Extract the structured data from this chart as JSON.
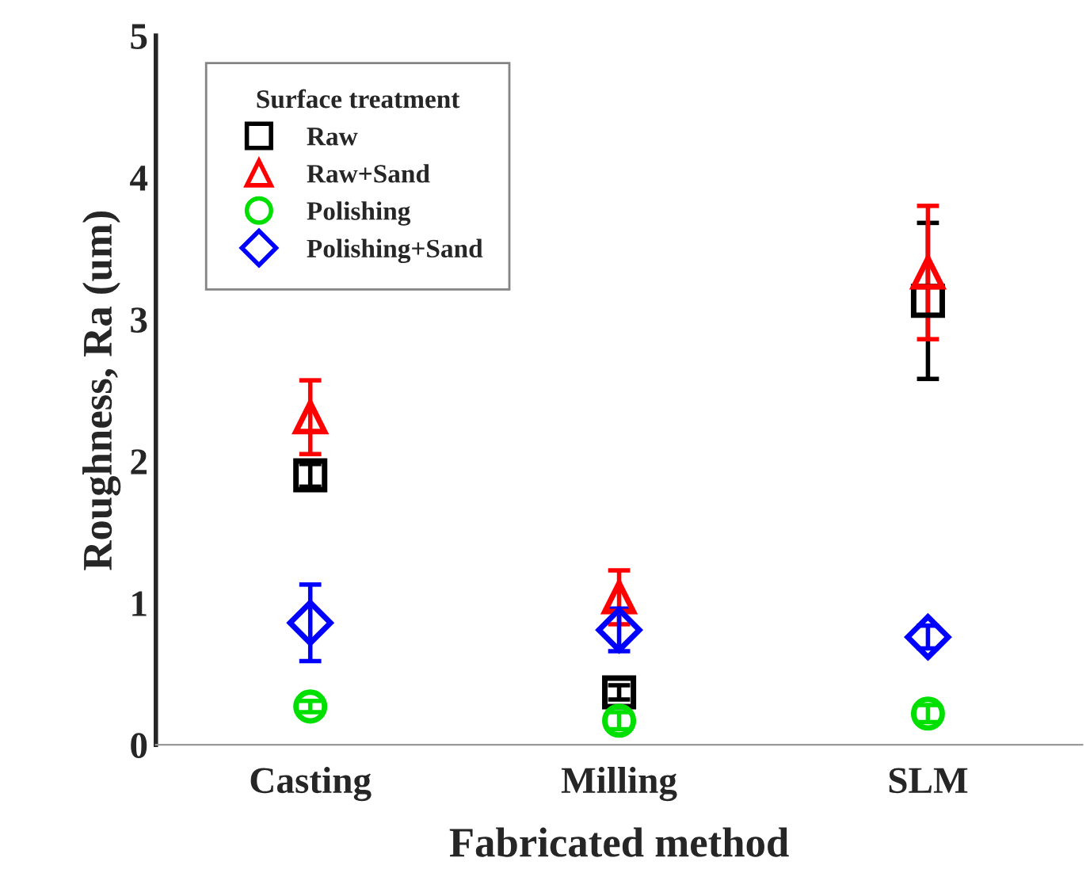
{
  "chart_data": {
    "type": "scatter",
    "xlabel": "Fabricated method",
    "ylabel": "Roughness, Ra (um)",
    "legend_title": "Surface treatment",
    "legend": "top left",
    "grid": false,
    "categories": [
      "Casting",
      "Milling",
      "SLM"
    ],
    "ylim": [
      0,
      5
    ],
    "yticks": [
      0,
      1,
      2,
      3,
      4,
      5
    ],
    "series": [
      {
        "name": "Raw",
        "color": "#000000",
        "marker": "square",
        "values": [
          1.9,
          0.37,
          3.13
        ],
        "errors": [
          0.08,
          0.05,
          0.55
        ]
      },
      {
        "name": "Raw+Sand",
        "color": "#ff0000",
        "marker": "triangle",
        "values": [
          2.31,
          1.04,
          3.33
        ],
        "errors": [
          0.26,
          0.19,
          0.47
        ]
      },
      {
        "name": "Polishing",
        "color": "#00e000",
        "marker": "circle",
        "values": [
          0.27,
          0.17,
          0.22
        ],
        "errors": [
          0.04,
          0.06,
          0.06
        ]
      },
      {
        "name": "Polishing+Sand",
        "color": "#0000ff",
        "marker": "diamond",
        "values": [
          0.86,
          0.81,
          0.76
        ],
        "errors": [
          0.27,
          0.15,
          0.08
        ]
      }
    ]
  }
}
